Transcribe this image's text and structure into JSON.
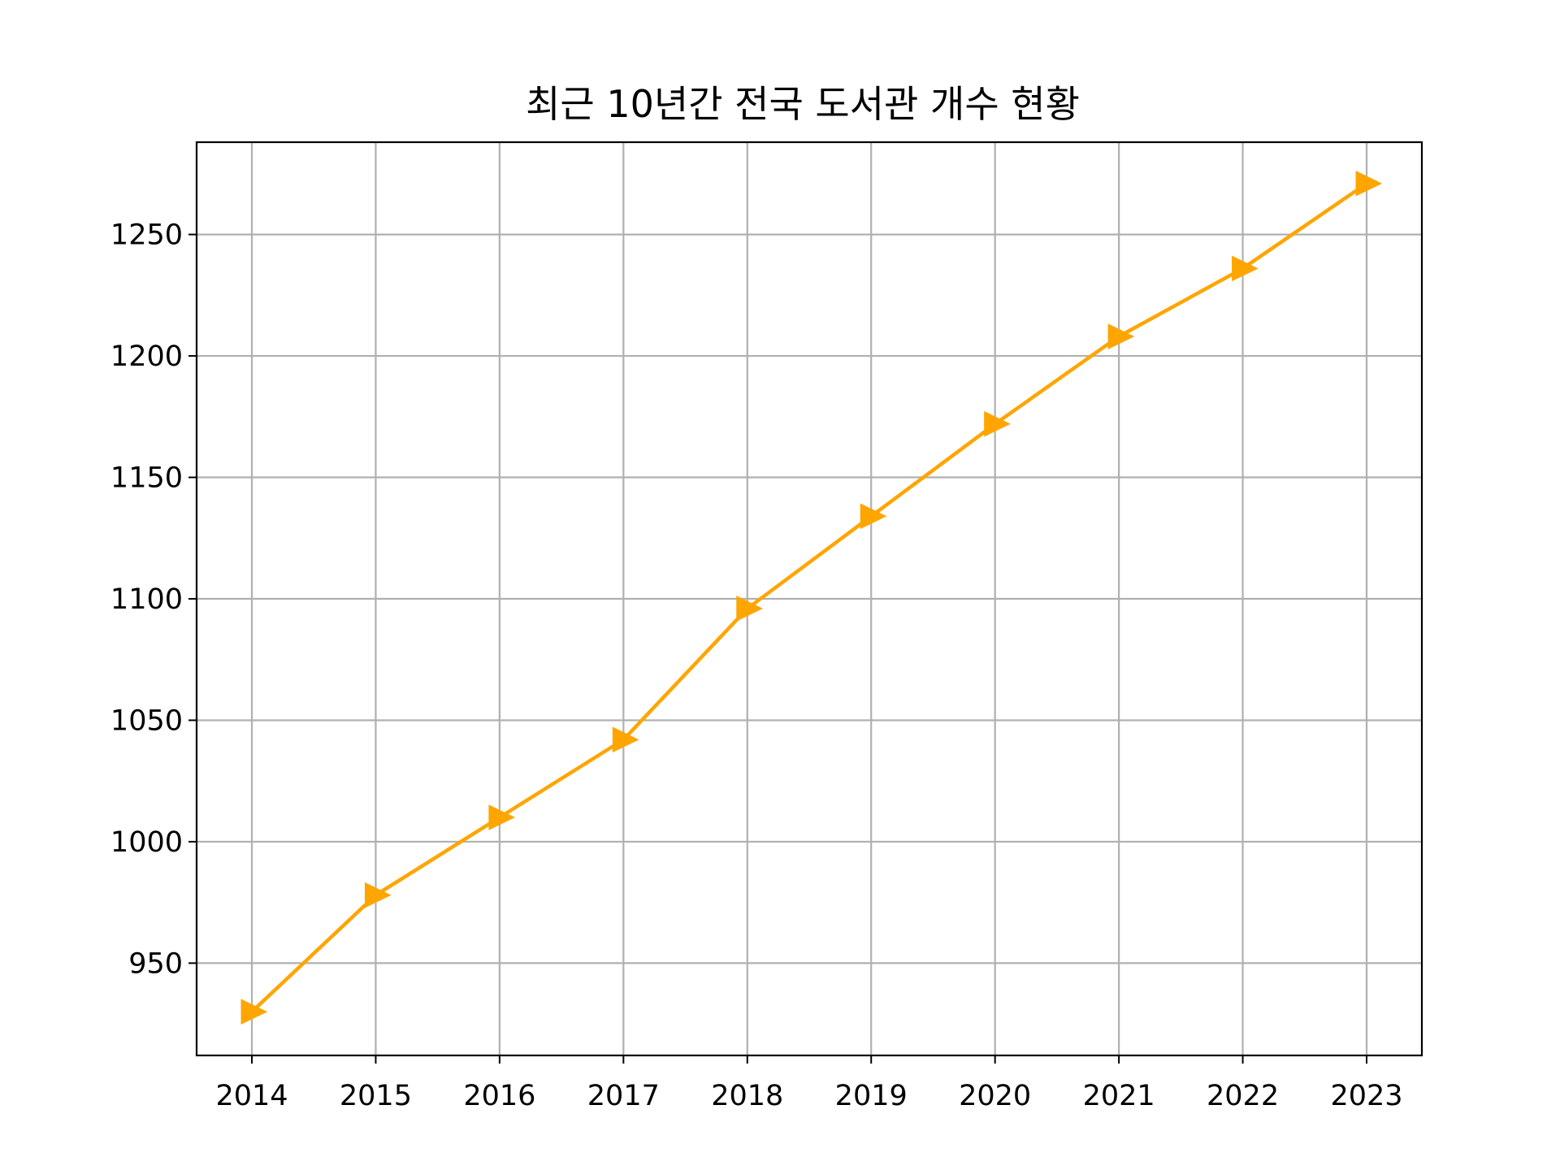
{
  "chart_data": {
    "type": "line",
    "title": "최근 10년간 전국 도서관 개수 현황",
    "xlabel": "",
    "ylabel": "",
    "x": [
      "2014",
      "2015",
      "2016",
      "2017",
      "2018",
      "2019",
      "2020",
      "2021",
      "2022",
      "2023"
    ],
    "series": [
      {
        "values": [
          930,
          978,
          1010,
          1042,
          1096,
          1134,
          1172,
          1208,
          1236,
          1271
        ],
        "color": "#FFA500",
        "marker": "triangle-right"
      }
    ],
    "ylim": [
      912,
      1288
    ],
    "yticks": [
      950,
      1000,
      1050,
      1100,
      1150,
      1200,
      1250
    ],
    "ytick_labels": [
      "950",
      "1000",
      "1050",
      "1100",
      "1150",
      "1200",
      "1250"
    ],
    "grid": true,
    "legend": "none"
  }
}
